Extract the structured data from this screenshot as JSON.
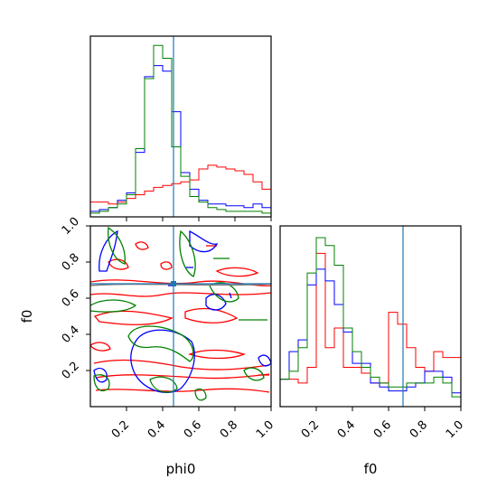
{
  "chart_data": [
    {
      "type": "histogram",
      "panel": "top-left",
      "variable": "phi0",
      "bins": [
        0.0,
        0.05,
        0.1,
        0.15,
        0.2,
        0.25,
        0.3,
        0.35,
        0.4,
        0.45,
        0.5,
        0.55,
        0.6,
        0.65,
        0.7,
        0.75,
        0.8,
        0.85,
        0.9,
        0.95,
        1.0
      ],
      "series": [
        {
          "color": "#ff0000",
          "counts": [
            8,
            8,
            7,
            8,
            10,
            12,
            14,
            16,
            17,
            18,
            19,
            20,
            26,
            28,
            27,
            26,
            25,
            23,
            19,
            15
          ]
        },
        {
          "color": "#0000ff",
          "counts": [
            3,
            4,
            5,
            9,
            13,
            35,
            76,
            82,
            79,
            57,
            24,
            15,
            9,
            7,
            7,
            6,
            6,
            5,
            7,
            5
          ]
        },
        {
          "color": "#008000",
          "counts": [
            2,
            3,
            5,
            7,
            12,
            37,
            75,
            93,
            86,
            38,
            22,
            11,
            8,
            5,
            4,
            3,
            3,
            3,
            3,
            2
          ]
        }
      ],
      "truth_line": {
        "x": 0.46,
        "color": "#1f77b4"
      },
      "xlim": [
        0,
        1
      ],
      "show_x_ticklabels": false,
      "show_y_ticklabels": false
    },
    {
      "type": "contour",
      "panel": "bottom-left",
      "x_variable": "phi0",
      "y_variable": "f0",
      "xlim": [
        0,
        1
      ],
      "ylim": [
        0,
        1
      ],
      "xlabel": "phi0",
      "ylabel": "f0",
      "x_ticks": [
        "0.2",
        "0.4",
        "0.6",
        "0.8",
        "1.0"
      ],
      "y_ticks": [
        "0.2",
        "0.4",
        "0.6",
        "0.8",
        "1.0"
      ],
      "truth_lines": {
        "x": 0.46,
        "y": 0.68,
        "color": "#1f77b4"
      },
      "series": [
        {
          "color": "#ff0000"
        },
        {
          "color": "#0000ff"
        },
        {
          "color": "#008000"
        }
      ]
    },
    {
      "type": "histogram",
      "panel": "bottom-right",
      "variable": "f0",
      "bins": [
        0.0,
        0.05,
        0.1,
        0.15,
        0.2,
        0.25,
        0.3,
        0.35,
        0.4,
        0.45,
        0.5,
        0.55,
        0.6,
        0.65,
        0.7,
        0.75,
        0.8,
        0.85,
        0.9,
        0.95,
        1.0
      ],
      "series": [
        {
          "color": "#ff0000",
          "counts": [
            14,
            14,
            12,
            20,
            78,
            30,
            40,
            20,
            20,
            17,
            12,
            12,
            48,
            42,
            30,
            20,
            18,
            28,
            25,
            25
          ]
        },
        {
          "color": "#0000ff",
          "counts": [
            14,
            28,
            34,
            62,
            70,
            64,
            52,
            38,
            22,
            22,
            12,
            10,
            8,
            8,
            10,
            12,
            18,
            18,
            15,
            7
          ]
        },
        {
          "color": "#008000",
          "counts": [
            14,
            18,
            30,
            68,
            86,
            82,
            72,
            40,
            28,
            20,
            15,
            12,
            10,
            10,
            12,
            12,
            12,
            15,
            12,
            5
          ]
        }
      ],
      "truth_line": {
        "x": 0.68,
        "color": "#1f77b4"
      },
      "xlim": [
        0,
        1
      ],
      "xlabel": "f0",
      "x_ticks": [
        "0.2",
        "0.4",
        "0.6",
        "0.8",
        "1.0"
      ],
      "show_y_ticklabels": false
    }
  ]
}
